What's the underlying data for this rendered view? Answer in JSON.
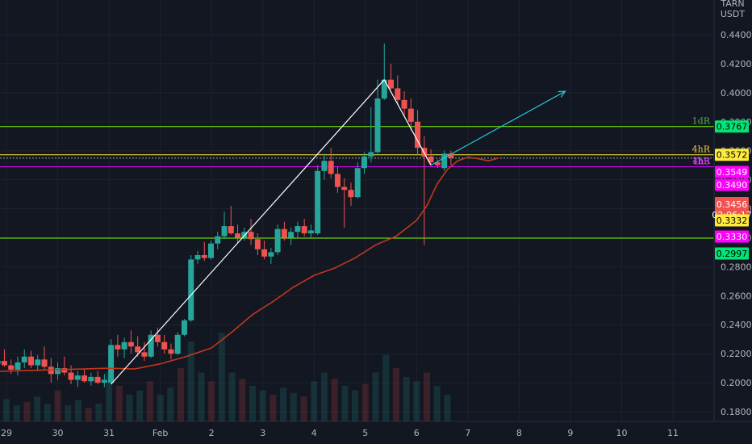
{
  "chart_data": {
    "type": "candlestick",
    "currency": "USDT",
    "currency_top": "TARN",
    "y_ticks": [
      "0.4400",
      "0.4200",
      "0.4000",
      "0.3800",
      "0.3600",
      "0.3400",
      "0.3200",
      "0.3000",
      "0.2800",
      "0.2600",
      "0.2400",
      "0.2200",
      "0.2000",
      "0.1800"
    ],
    "y_tick_values": [
      0.44,
      0.42,
      0.4,
      0.38,
      0.36,
      0.34,
      0.32,
      0.3,
      0.28,
      0.26,
      0.24,
      0.22,
      0.2,
      0.18
    ],
    "x_ticks": [
      "29",
      "30",
      "31",
      "Feb",
      "2",
      "3",
      "4",
      "5",
      "6",
      "7",
      "8",
      "9",
      "10",
      "11"
    ],
    "x_tick_days": [
      29,
      30,
      31,
      32,
      33,
      34,
      35,
      36,
      37,
      38,
      39,
      40,
      41,
      42
    ],
    "levels": [
      {
        "name": "1dR",
        "price": 0.3767,
        "label": "0.3767",
        "color": "#4caf50",
        "tag_bg": "#00e676",
        "tag_fg": "#000000",
        "line": "#7cfc00"
      },
      {
        "name": "4hR",
        "price": 0.3572,
        "label": "0.3572",
        "color": "#f5c542",
        "tag_bg": "#ffeb3b",
        "tag_fg": "#000000",
        "line": "#ffeb3b"
      },
      {
        "name": "1hR",
        "price": 0.3549,
        "label": "0.3549",
        "color": "#e040fb",
        "tag_bg": "#ff00ff",
        "tag_fg": "#ffffff",
        "line": "#9e9e9e"
      },
      {
        "name": "4hS",
        "price": 0.349,
        "label": "0.3490",
        "color": "#e040fb",
        "tag_bg": "#ff00ff",
        "tag_fg": "#ffffff",
        "line": "#d500f9"
      },
      {
        "name": "",
        "price": 0.2997,
        "label": "0.2997",
        "color": "#00e676",
        "tag_bg": "#00e676",
        "tag_fg": "#000000",
        "line": "#7cfc00"
      }
    ],
    "extra_tags": [
      {
        "label": "0.3456",
        "sub": "02:06:17",
        "price": 0.3456,
        "tag_bg": "#f05350",
        "tag_fg": "#ffffff"
      },
      {
        "label": "0.3332",
        "price": 0.3332,
        "tag_bg": "#ffeb3b",
        "tag_fg": "#000000"
      },
      {
        "label": "0.3330",
        "price": 0.333,
        "tag_bg": "#ff00ff",
        "tag_fg": "#ffffff"
      }
    ],
    "candles": [
      [
        28.7,
        0.214,
        0.218,
        0.209,
        0.213
      ],
      [
        28.83,
        0.213,
        0.22,
        0.21,
        0.215
      ],
      [
        28.96,
        0.215,
        0.223,
        0.211,
        0.212
      ],
      [
        29.09,
        0.212,
        0.216,
        0.206,
        0.209
      ],
      [
        29.22,
        0.209,
        0.218,
        0.205,
        0.214
      ],
      [
        29.35,
        0.214,
        0.223,
        0.21,
        0.218
      ],
      [
        29.48,
        0.218,
        0.222,
        0.21,
        0.212
      ],
      [
        29.61,
        0.212,
        0.219,
        0.208,
        0.216
      ],
      [
        29.74,
        0.216,
        0.225,
        0.209,
        0.211
      ],
      [
        29.87,
        0.211,
        0.217,
        0.2,
        0.206
      ],
      [
        30.0,
        0.206,
        0.214,
        0.202,
        0.21
      ],
      [
        30.13,
        0.21,
        0.218,
        0.205,
        0.207
      ],
      [
        30.26,
        0.207,
        0.212,
        0.199,
        0.202
      ],
      [
        30.39,
        0.202,
        0.208,
        0.197,
        0.205
      ],
      [
        30.52,
        0.205,
        0.209,
        0.2,
        0.201
      ],
      [
        30.65,
        0.201,
        0.207,
        0.198,
        0.204
      ],
      [
        30.78,
        0.204,
        0.208,
        0.199,
        0.2
      ],
      [
        30.91,
        0.2,
        0.206,
        0.197,
        0.202
      ],
      [
        31.04,
        0.2,
        0.23,
        0.199,
        0.226
      ],
      [
        31.17,
        0.226,
        0.233,
        0.218,
        0.223
      ],
      [
        31.3,
        0.223,
        0.231,
        0.217,
        0.228
      ],
      [
        31.43,
        0.228,
        0.236,
        0.22,
        0.225
      ],
      [
        31.56,
        0.225,
        0.232,
        0.218,
        0.221
      ],
      [
        31.69,
        0.221,
        0.228,
        0.215,
        0.218
      ],
      [
        31.82,
        0.218,
        0.236,
        0.217,
        0.233
      ],
      [
        31.95,
        0.233,
        0.238,
        0.225,
        0.228
      ],
      [
        32.08,
        0.228,
        0.233,
        0.22,
        0.223
      ],
      [
        32.21,
        0.223,
        0.227,
        0.216,
        0.22
      ],
      [
        32.34,
        0.22,
        0.235,
        0.219,
        0.233
      ],
      [
        32.47,
        0.233,
        0.244,
        0.232,
        0.243
      ],
      [
        32.6,
        0.243,
        0.288,
        0.242,
        0.285
      ],
      [
        32.73,
        0.285,
        0.291,
        0.282,
        0.288
      ],
      [
        32.86,
        0.288,
        0.297,
        0.284,
        0.286
      ],
      [
        32.99,
        0.286,
        0.298,
        0.285,
        0.296
      ],
      [
        33.12,
        0.296,
        0.304,
        0.292,
        0.301
      ],
      [
        33.25,
        0.301,
        0.318,
        0.299,
        0.308
      ],
      [
        33.38,
        0.308,
        0.322,
        0.302,
        0.303
      ],
      [
        33.51,
        0.303,
        0.309,
        0.296,
        0.3
      ],
      [
        33.64,
        0.3,
        0.307,
        0.298,
        0.304
      ],
      [
        33.77,
        0.304,
        0.313,
        0.295,
        0.299
      ],
      [
        33.9,
        0.299,
        0.303,
        0.288,
        0.292
      ],
      [
        34.03,
        0.292,
        0.298,
        0.285,
        0.287
      ],
      [
        34.16,
        0.287,
        0.293,
        0.282,
        0.29
      ],
      [
        34.29,
        0.29,
        0.309,
        0.288,
        0.306
      ],
      [
        34.42,
        0.306,
        0.311,
        0.298,
        0.3
      ],
      [
        34.55,
        0.3,
        0.307,
        0.295,
        0.304
      ],
      [
        34.68,
        0.304,
        0.311,
        0.3,
        0.308
      ],
      [
        34.81,
        0.308,
        0.313,
        0.301,
        0.303
      ],
      [
        34.94,
        0.303,
        0.309,
        0.3,
        0.305
      ],
      [
        35.07,
        0.303,
        0.35,
        0.302,
        0.346
      ],
      [
        35.2,
        0.346,
        0.358,
        0.34,
        0.353
      ],
      [
        35.33,
        0.353,
        0.362,
        0.341,
        0.344
      ],
      [
        35.46,
        0.344,
        0.349,
        0.331,
        0.335
      ],
      [
        35.59,
        0.335,
        0.341,
        0.307,
        0.333
      ],
      [
        35.72,
        0.333,
        0.338,
        0.322,
        0.328
      ],
      [
        35.85,
        0.328,
        0.352,
        0.327,
        0.348
      ],
      [
        35.98,
        0.348,
        0.359,
        0.344,
        0.356
      ],
      [
        36.11,
        0.356,
        0.39,
        0.352,
        0.359
      ],
      [
        36.24,
        0.359,
        0.409,
        0.358,
        0.396
      ],
      [
        36.37,
        0.396,
        0.434,
        0.395,
        0.409
      ],
      [
        36.5,
        0.409,
        0.42,
        0.402,
        0.403
      ],
      [
        36.63,
        0.403,
        0.412,
        0.392,
        0.395
      ],
      [
        36.76,
        0.395,
        0.401,
        0.384,
        0.389
      ],
      [
        36.89,
        0.389,
        0.396,
        0.374,
        0.38
      ],
      [
        37.02,
        0.38,
        0.388,
        0.357,
        0.362
      ],
      [
        37.15,
        0.362,
        0.37,
        0.295,
        0.356
      ],
      [
        37.28,
        0.356,
        0.361,
        0.35,
        0.352
      ],
      [
        37.41,
        0.352,
        0.354,
        0.348,
        0.35
      ],
      [
        37.54,
        0.348,
        0.36,
        0.346,
        0.358
      ],
      [
        37.67,
        0.358,
        0.36,
        0.35,
        0.355
      ]
    ],
    "ma": [
      [
        28.6,
        0.2075
      ],
      [
        29.0,
        0.208
      ],
      [
        29.5,
        0.2085
      ],
      [
        30.0,
        0.209
      ],
      [
        30.5,
        0.2095
      ],
      [
        31.0,
        0.21
      ],
      [
        31.5,
        0.2095
      ],
      [
        32.0,
        0.213
      ],
      [
        32.5,
        0.218
      ],
      [
        33.0,
        0.224
      ],
      [
        33.4,
        0.235
      ],
      [
        33.8,
        0.247
      ],
      [
        34.2,
        0.256
      ],
      [
        34.6,
        0.266
      ],
      [
        35.0,
        0.274
      ],
      [
        35.4,
        0.279
      ],
      [
        35.8,
        0.286
      ],
      [
        36.2,
        0.295
      ],
      [
        36.6,
        0.301
      ],
      [
        37.0,
        0.312
      ],
      [
        37.2,
        0.322
      ],
      [
        37.4,
        0.337
      ],
      [
        37.6,
        0.347
      ],
      [
        37.8,
        0.353
      ],
      [
        38.0,
        0.3555
      ],
      [
        38.2,
        0.3545
      ],
      [
        38.4,
        0.353
      ],
      [
        38.6,
        0.355
      ]
    ],
    "volume": [
      [
        28.7,
        0.2
      ],
      [
        28.8,
        0.15
      ],
      [
        29.0,
        0.25
      ],
      [
        29.2,
        0.18
      ],
      [
        29.4,
        0.22
      ],
      [
        29.6,
        0.28
      ],
      [
        29.8,
        0.2
      ],
      [
        30.0,
        0.35
      ],
      [
        30.2,
        0.18
      ],
      [
        30.4,
        0.24
      ],
      [
        30.6,
        0.15
      ],
      [
        30.8,
        0.2
      ],
      [
        31.0,
        0.55
      ],
      [
        31.2,
        0.4
      ],
      [
        31.4,
        0.3
      ],
      [
        31.6,
        0.35
      ],
      [
        31.8,
        0.45
      ],
      [
        32.0,
        0.3
      ],
      [
        32.2,
        0.38
      ],
      [
        32.4,
        0.6
      ],
      [
        32.6,
        0.9
      ],
      [
        32.8,
        0.55
      ],
      [
        33.0,
        0.45
      ],
      [
        33.2,
        1.0
      ],
      [
        33.4,
        0.55
      ],
      [
        33.6,
        0.48
      ],
      [
        33.8,
        0.4
      ],
      [
        34.0,
        0.35
      ],
      [
        34.2,
        0.3
      ],
      [
        34.4,
        0.38
      ],
      [
        34.6,
        0.32
      ],
      [
        34.8,
        0.28
      ],
      [
        35.0,
        0.45
      ],
      [
        35.2,
        0.55
      ],
      [
        35.4,
        0.48
      ],
      [
        35.6,
        0.4
      ],
      [
        35.8,
        0.35
      ],
      [
        36.0,
        0.42
      ],
      [
        36.2,
        0.55
      ],
      [
        36.4,
        0.75
      ],
      [
        36.6,
        0.6
      ],
      [
        36.8,
        0.5
      ],
      [
        37.0,
        0.45
      ],
      [
        37.2,
        0.55
      ],
      [
        37.4,
        0.4
      ],
      [
        37.6,
        0.3
      ]
    ],
    "trend_lines": [
      {
        "from": [
          31.04,
          0.199
        ],
        "to": [
          36.37,
          0.409
        ],
        "color": "#ffffff",
        "arrow": false
      },
      {
        "from": [
          36.37,
          0.409
        ],
        "to": [
          37.28,
          0.35
        ],
        "color": "#ffffff",
        "arrow": false
      },
      {
        "from": [
          37.28,
          0.35
        ],
        "to": [
          39.9,
          0.401
        ],
        "color": "#26c6da",
        "arrow": true
      }
    ]
  }
}
